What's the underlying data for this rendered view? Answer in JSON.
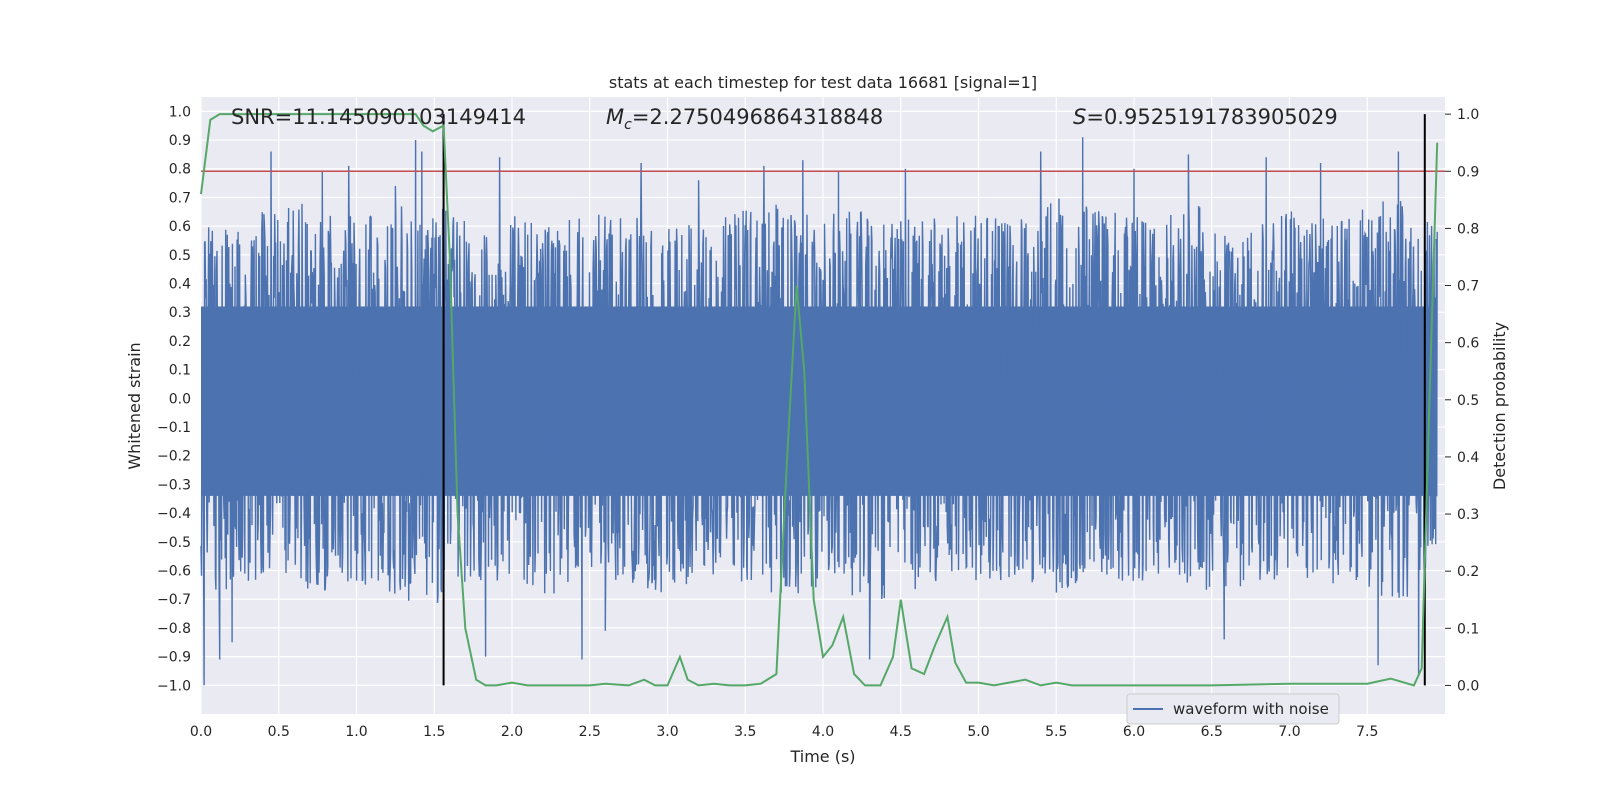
{
  "chart_data": {
    "type": "line",
    "title": "stats at each timestep for test data 16681 [signal=1]",
    "xlabel": "Time (s)",
    "ylabel": "Whitened strain",
    "y2label": "Detection probability",
    "xlim": [
      0.0,
      8.0
    ],
    "ylim": [
      -1.1,
      1.05
    ],
    "y2lim": [
      -0.05,
      1.03
    ],
    "xticks": [
      "0.0",
      "0.5",
      "1.0",
      "1.5",
      "2.0",
      "2.5",
      "3.0",
      "3.5",
      "4.0",
      "4.5",
      "5.0",
      "5.5",
      "6.0",
      "6.5",
      "7.0",
      "7.5"
    ],
    "yticks": [
      "1.0",
      "0.9",
      "0.8",
      "0.7",
      "0.6",
      "0.5",
      "0.4",
      "0.3",
      "0.2",
      "0.1",
      "0.0",
      "-0.1",
      "-0.2",
      "-0.3",
      "-0.4",
      "-0.5",
      "-0.6",
      "-0.7",
      "-0.8",
      "-0.9",
      "-1.0"
    ],
    "y2ticks": [
      "1.0",
      "0.9",
      "0.8",
      "0.7",
      "0.6",
      "0.5",
      "0.4",
      "0.3",
      "0.2",
      "0.1",
      "0.0"
    ],
    "grid": true,
    "legend_position": "lower-right",
    "annotations": {
      "snr": "SNR=11.145090103149414",
      "mc_symbol": "M",
      "mc_sub": "c",
      "mc_value": "=2.2750496864318848",
      "s_symbol": "S",
      "s_value": "=0.9525191783905029"
    },
    "threshold_y2": 0.9,
    "vlines_x": [
      1.56,
      7.87
    ],
    "series": [
      {
        "name": "waveform with noise",
        "color": "#4c72b0",
        "axis": "left",
        "envelope": {
          "x": [
            0.0,
            0.25,
            0.5,
            0.75,
            1.0,
            1.25,
            1.5,
            1.75,
            2.0,
            2.25,
            2.5,
            2.75,
            3.0,
            3.25,
            3.5,
            3.75,
            4.0,
            4.25,
            4.5,
            4.75,
            5.0,
            5.25,
            5.5,
            5.75,
            6.0,
            6.25,
            6.5,
            6.75,
            7.0,
            7.25,
            7.5,
            7.75,
            8.0
          ],
          "upper": [
            0.62,
            0.58,
            0.72,
            0.66,
            0.63,
            0.68,
            0.7,
            0.6,
            0.65,
            0.62,
            0.66,
            0.64,
            0.6,
            0.63,
            0.66,
            0.68,
            0.64,
            0.66,
            0.62,
            0.64,
            0.65,
            0.63,
            0.7,
            0.66,
            0.64,
            0.66,
            0.68,
            0.62,
            0.66,
            0.64,
            0.68,
            0.7,
            0.6
          ],
          "lower": [
            -0.7,
            -0.66,
            -0.62,
            -0.68,
            -0.64,
            -0.7,
            -0.72,
            -0.66,
            -0.62,
            -0.7,
            -0.64,
            -0.66,
            -0.68,
            -0.62,
            -0.64,
            -0.7,
            -0.66,
            -0.72,
            -0.68,
            -0.64,
            -0.66,
            -0.62,
            -0.68,
            -0.66,
            -0.64,
            -0.62,
            -0.68,
            -0.66,
            -0.62,
            -0.64,
            -0.7,
            -0.72,
            -0.62
          ]
        },
        "peaks": [
          [
            0.02,
            -1.0
          ],
          [
            0.12,
            -0.91
          ],
          [
            0.2,
            -0.85
          ],
          [
            0.45,
            0.86
          ],
          [
            0.78,
            0.79
          ],
          [
            0.95,
            0.81
          ],
          [
            1.25,
            0.74
          ],
          [
            1.38,
            0.9
          ],
          [
            1.42,
            0.86
          ],
          [
            1.83,
            -0.9
          ],
          [
            1.92,
            0.84
          ],
          [
            2.45,
            -0.91
          ],
          [
            2.6,
            -0.81
          ],
          [
            2.83,
            0.82
          ],
          [
            3.2,
            0.76
          ],
          [
            3.62,
            0.81
          ],
          [
            3.87,
            0.83
          ],
          [
            4.1,
            0.79
          ],
          [
            4.3,
            -0.91
          ],
          [
            4.53,
            0.8
          ],
          [
            5.4,
            0.86
          ],
          [
            5.67,
            0.91
          ],
          [
            6.0,
            0.8
          ],
          [
            6.35,
            0.85
          ],
          [
            6.58,
            -0.84
          ],
          [
            6.85,
            0.84
          ],
          [
            7.2,
            0.82
          ],
          [
            7.57,
            -0.93
          ],
          [
            7.7,
            0.86
          ],
          [
            7.83,
            -0.96
          ]
        ]
      },
      {
        "name": "",
        "color": "#55a868",
        "axis": "right",
        "x": [
          0.0,
          0.06,
          0.12,
          0.2,
          0.4,
          0.6,
          0.8,
          1.0,
          1.2,
          1.38,
          1.43,
          1.49,
          1.56,
          1.6,
          1.65,
          1.7,
          1.77,
          1.83,
          1.9,
          2.0,
          2.1,
          2.3,
          2.5,
          2.6,
          2.75,
          2.85,
          2.92,
          3.0,
          3.08,
          3.13,
          3.2,
          3.3,
          3.4,
          3.5,
          3.6,
          3.7,
          3.77,
          3.83,
          3.88,
          3.94,
          4.0,
          4.06,
          4.13,
          4.2,
          4.27,
          4.37,
          4.45,
          4.5,
          4.57,
          4.65,
          4.72,
          4.8,
          4.85,
          4.92,
          5.0,
          5.1,
          5.3,
          5.4,
          5.5,
          5.6,
          5.8,
          6.0,
          6.5,
          7.0,
          7.5,
          7.65,
          7.8,
          7.85,
          7.9,
          7.95
        ],
        "y": [
          0.86,
          0.99,
          1.0,
          1.0,
          1.0,
          1.0,
          1.0,
          1.0,
          1.0,
          1.0,
          0.98,
          0.97,
          0.98,
          0.75,
          0.3,
          0.1,
          0.01,
          0.0,
          0.0,
          0.005,
          0.0,
          0.0,
          0.0,
          0.003,
          0.0,
          0.01,
          0.0,
          0.0,
          0.05,
          0.01,
          0.0,
          0.003,
          0.0,
          0.0,
          0.003,
          0.02,
          0.4,
          0.7,
          0.55,
          0.15,
          0.05,
          0.07,
          0.12,
          0.02,
          0.0,
          0.0,
          0.05,
          0.15,
          0.03,
          0.02,
          0.07,
          0.12,
          0.04,
          0.005,
          0.005,
          0.0,
          0.01,
          0.0,
          0.005,
          0.0,
          0.0,
          0.0,
          0.0,
          0.003,
          0.003,
          0.012,
          0.0,
          0.03,
          0.5,
          0.95
        ]
      }
    ]
  }
}
